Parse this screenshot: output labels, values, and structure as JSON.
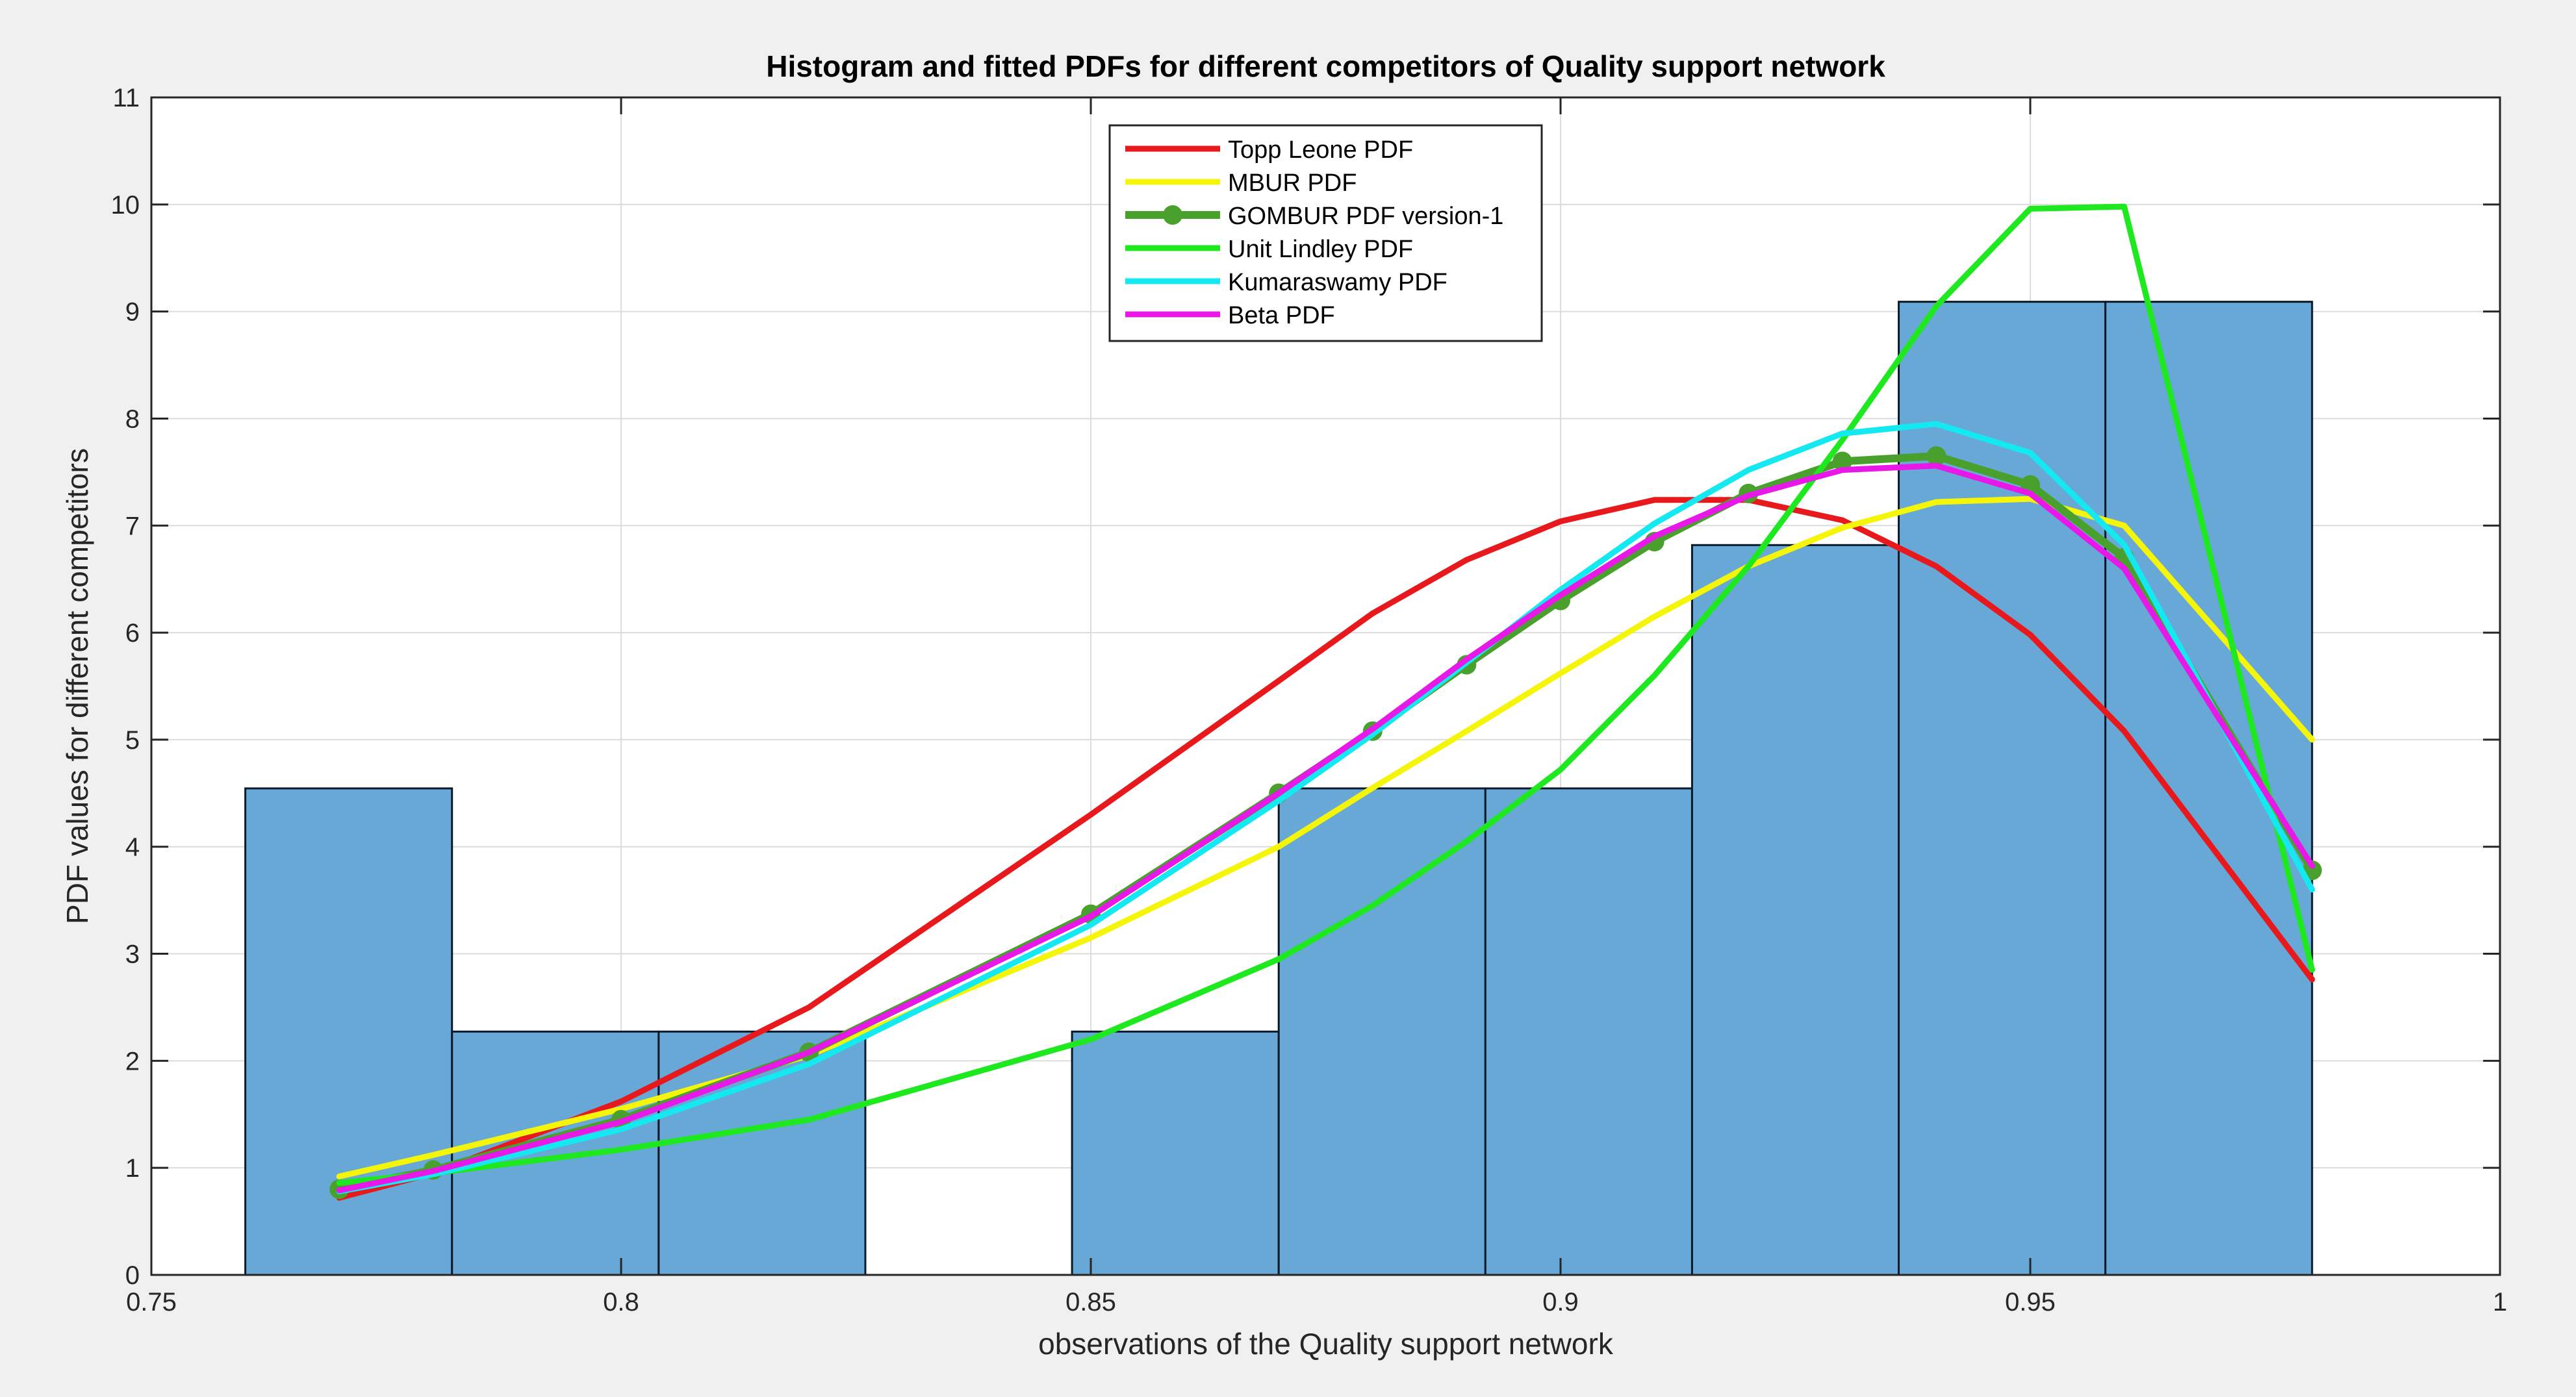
{
  "window": {
    "background": "#f0f0f0"
  },
  "chart_data": {
    "type": "bar",
    "title": "Histogram and fitted PDFs for different competitors of Quality support network",
    "xlabel": "observations of the Quality support network",
    "ylabel": "PDF values for different competitors",
    "xlim": [
      0.75,
      1
    ],
    "ylim": [
      0,
      11
    ],
    "grid": true,
    "x_ticks": [
      0.75,
      0.8,
      0.85,
      0.9,
      0.95,
      1
    ],
    "x_tick_labels": [
      "0.75",
      "0.8",
      "0.85",
      "0.9",
      "0.95",
      "1"
    ],
    "y_ticks": [
      0,
      1,
      2,
      3,
      4,
      5,
      6,
      7,
      8,
      9,
      10,
      11
    ],
    "y_tick_labels": [
      "0",
      "1",
      "2",
      "3",
      "4",
      "5",
      "6",
      "7",
      "8",
      "9",
      "10",
      "11"
    ],
    "legend_position": "top-center",
    "histogram": {
      "bin_edges": [
        0.76,
        0.782,
        0.804,
        0.826,
        0.848,
        0.87,
        0.892,
        0.914,
        0.936,
        0.958,
        0.98
      ],
      "values": [
        4.545,
        2.273,
        2.273,
        0,
        2.273,
        4.545,
        4.545,
        6.818,
        9.091,
        9.091
      ],
      "color": "#68a8d6",
      "edge_color": "#0a1a2a"
    },
    "x": [
      0.77,
      0.78,
      0.8,
      0.82,
      0.85,
      0.87,
      0.88,
      0.89,
      0.9,
      0.91,
      0.92,
      0.93,
      0.94,
      0.95,
      0.96,
      0.98
    ],
    "series": [
      {
        "name": "Topp Leone PDF",
        "color": "#e8191c",
        "marker": false,
        "values": [
          0.72,
          0.95,
          1.62,
          2.5,
          4.3,
          5.55,
          6.18,
          6.68,
          7.04,
          7.24,
          7.24,
          7.05,
          6.62,
          5.98,
          5.08,
          2.76
        ]
      },
      {
        "name": "MBUR PDF",
        "color": "#f5f50a",
        "marker": false,
        "values": [
          0.92,
          1.12,
          1.55,
          2.05,
          3.15,
          4.0,
          4.55,
          5.08,
          5.62,
          6.15,
          6.62,
          6.98,
          7.22,
          7.25,
          7.0,
          5.0
        ]
      },
      {
        "name": "GOMBUR PDF version-1",
        "color": "#4aa02c",
        "marker": true,
        "values": [
          0.8,
          0.98,
          1.45,
          2.08,
          3.37,
          4.5,
          5.08,
          5.7,
          6.3,
          6.85,
          7.3,
          7.6,
          7.65,
          7.38,
          6.7,
          3.78
        ]
      },
      {
        "name": "Unit Lindley PDF",
        "color": "#1ee81e",
        "marker": false,
        "values": [
          0.86,
          0.95,
          1.17,
          1.45,
          2.2,
          2.95,
          3.45,
          4.05,
          4.72,
          5.6,
          6.62,
          7.8,
          9.05,
          9.96,
          9.98,
          2.85
        ]
      },
      {
        "name": "Kumaraswamy PDF",
        "color": "#14e8f0",
        "marker": false,
        "values": [
          0.78,
          0.94,
          1.36,
          1.97,
          3.27,
          4.43,
          5.05,
          5.72,
          6.4,
          7.02,
          7.52,
          7.86,
          7.95,
          7.68,
          6.82,
          3.6
        ]
      },
      {
        "name": "Beta PDF",
        "color": "#e818e8",
        "marker": false,
        "values": [
          0.79,
          0.97,
          1.43,
          2.08,
          3.35,
          4.5,
          5.1,
          5.75,
          6.35,
          6.9,
          7.28,
          7.52,
          7.56,
          7.3,
          6.6,
          3.82
        ]
      }
    ]
  }
}
